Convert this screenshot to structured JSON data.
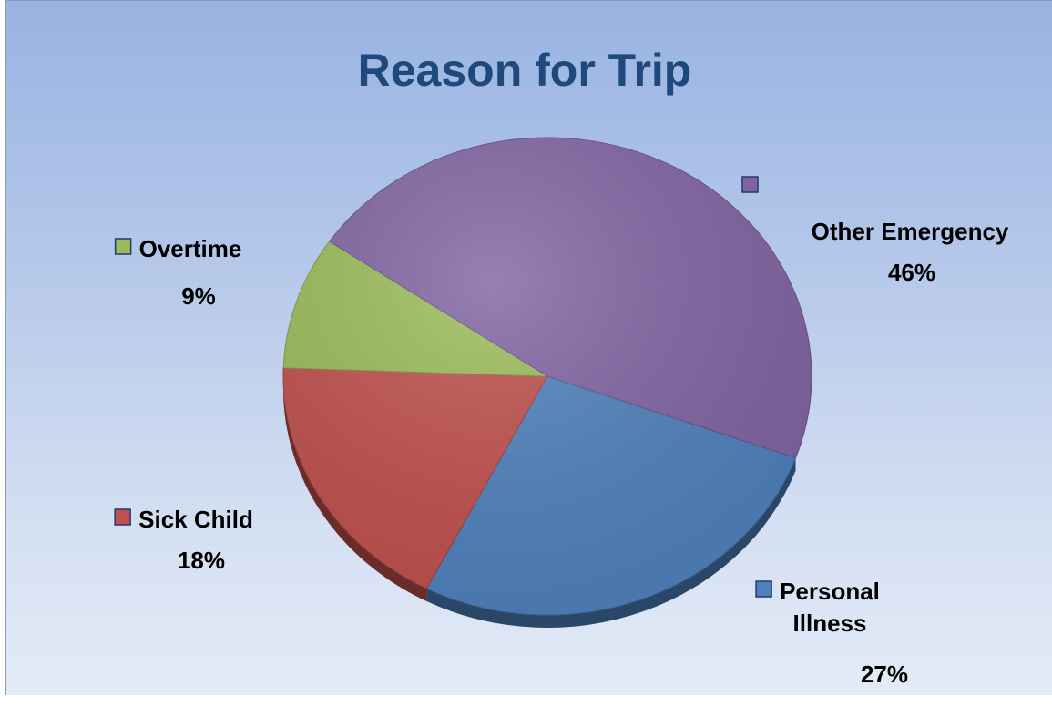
{
  "chart_data": {
    "type": "pie",
    "title": "Reason for Trip",
    "style": "3d",
    "slices": [
      {
        "name": "Personal Illness",
        "value": 27,
        "label": "27%",
        "label_lines": [
          "Personal",
          "Illness"
        ],
        "color": "#4f81bd"
      },
      {
        "name": "Sick Child",
        "value": 18,
        "label": "18%",
        "label_lines": [
          "Sick Child"
        ],
        "color": "#c0504d"
      },
      {
        "name": "Overtime",
        "value": 9,
        "label": "9%",
        "label_lines": [
          "Overtime"
        ],
        "color": "#9bbb59"
      },
      {
        "name": "Other Emergency",
        "value": 46,
        "label": "46%",
        "label_lines": [
          "Other Emergency"
        ],
        "color": "#8064a2"
      }
    ],
    "legend": "none"
  }
}
